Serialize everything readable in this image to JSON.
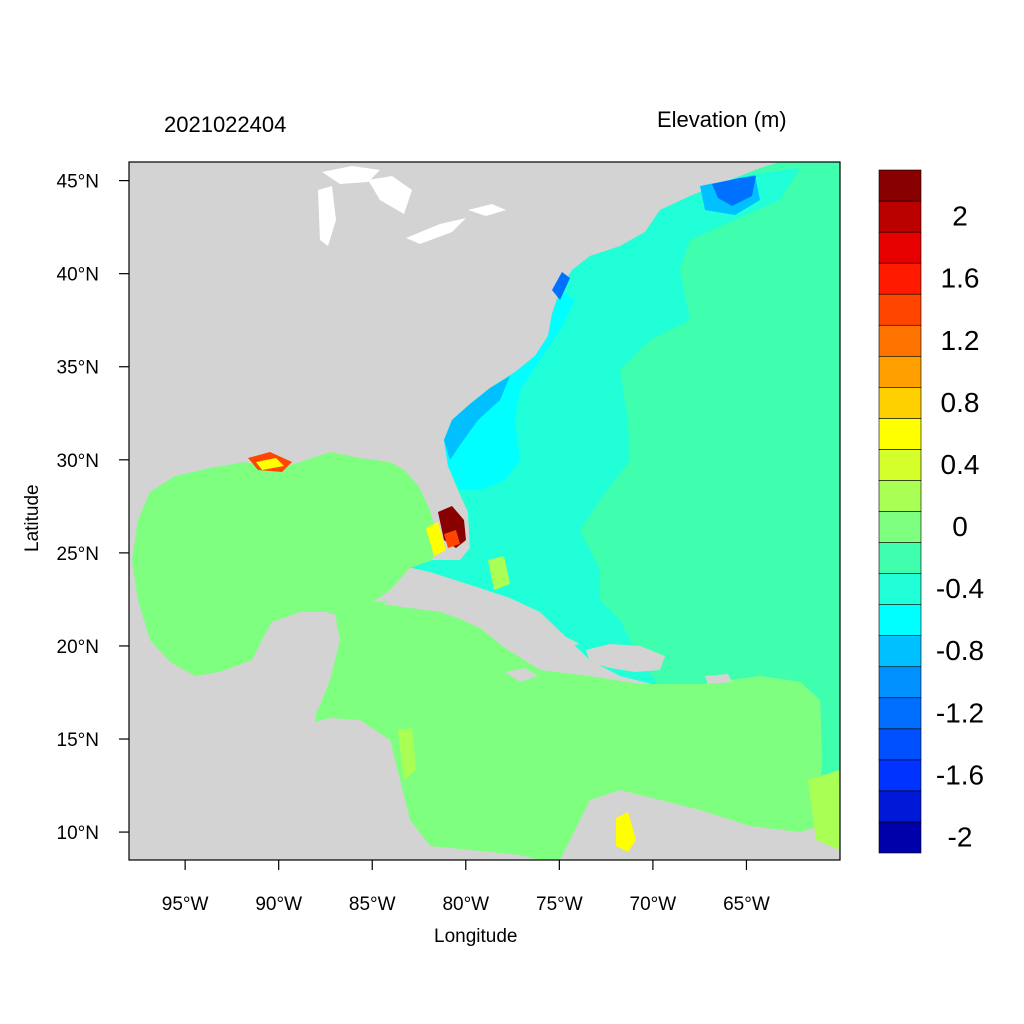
{
  "header": {
    "date": "2021022404",
    "variable": "Elevation (m)"
  },
  "axes": {
    "xlabel": "Longitude",
    "ylabel": "Latitude",
    "lon_ticks": [
      {
        "value": -95,
        "label": "95°W"
      },
      {
        "value": -90,
        "label": "90°W"
      },
      {
        "value": -85,
        "label": "85°W"
      },
      {
        "value": -80,
        "label": "80°W"
      },
      {
        "value": -75,
        "label": "75°W"
      },
      {
        "value": -70,
        "label": "70°W"
      },
      {
        "value": -65,
        "label": "65°W"
      }
    ],
    "lat_ticks": [
      {
        "value": 45,
        "label": "45°N"
      },
      {
        "value": 40,
        "label": "40°N"
      },
      {
        "value": 35,
        "label": "35°N"
      },
      {
        "value": 30,
        "label": "30°N"
      },
      {
        "value": 25,
        "label": "25°N"
      },
      {
        "value": 20,
        "label": "20°N"
      },
      {
        "value": 15,
        "label": "15°N"
      },
      {
        "value": 10,
        "label": "10°N"
      }
    ],
    "lon_range": [
      -98,
      -60
    ],
    "lat_range": [
      8.5,
      46
    ]
  },
  "colorbar": {
    "levels": [
      -2.2,
      -2.0,
      -1.8,
      -1.6,
      -1.4,
      -1.2,
      -1.0,
      -0.8,
      -0.6,
      -0.4,
      -0.2,
      0.0,
      0.2,
      0.4,
      0.6,
      0.8,
      1.0,
      1.2,
      1.4,
      1.6,
      1.8,
      2.0,
      2.2
    ],
    "colors_bottom_to_top": [
      "#0000aa",
      "#0019d9",
      "#0033ff",
      "#0050ff",
      "#006eff",
      "#0090ff",
      "#00c0ff",
      "#00ffff",
      "#20ffd8",
      "#3fffae",
      "#7fff7f",
      "#aaff55",
      "#d4ff2a",
      "#ffff00",
      "#ffd000",
      "#ffa000",
      "#ff7300",
      "#ff4500",
      "#ff1a00",
      "#e60000",
      "#bb0000",
      "#880000"
    ],
    "labels": [
      {
        "value": 2.0,
        "label": "2"
      },
      {
        "value": 1.6,
        "label": "1.6"
      },
      {
        "value": 1.2,
        "label": "1.2"
      },
      {
        "value": 0.8,
        "label": "0.8"
      },
      {
        "value": 0.4,
        "label": "0.4"
      },
      {
        "value": 0.0,
        "label": "0"
      },
      {
        "value": -0.4,
        "label": "-0.4"
      },
      {
        "value": -0.8,
        "label": "-0.8"
      },
      {
        "value": -1.2,
        "label": "-1.2"
      },
      {
        "value": -1.6,
        "label": "-1.6"
      },
      {
        "value": -2.0,
        "label": "-2"
      }
    ]
  },
  "map_colors": {
    "land": "#d3d3d3",
    "lakes": "#ffffff",
    "gulf_caribbean": "#7fff7f",
    "atlantic_open": "#3fffae",
    "atlantic_shelf": "#20ffd8",
    "coastal_low": "#00ffff",
    "coastal_lower": "#00c0ff",
    "coastal_lowest": "#0070ff",
    "surge_high": "#880000",
    "surge_mid": "#ff4500",
    "surge_low": "#ffff00"
  }
}
